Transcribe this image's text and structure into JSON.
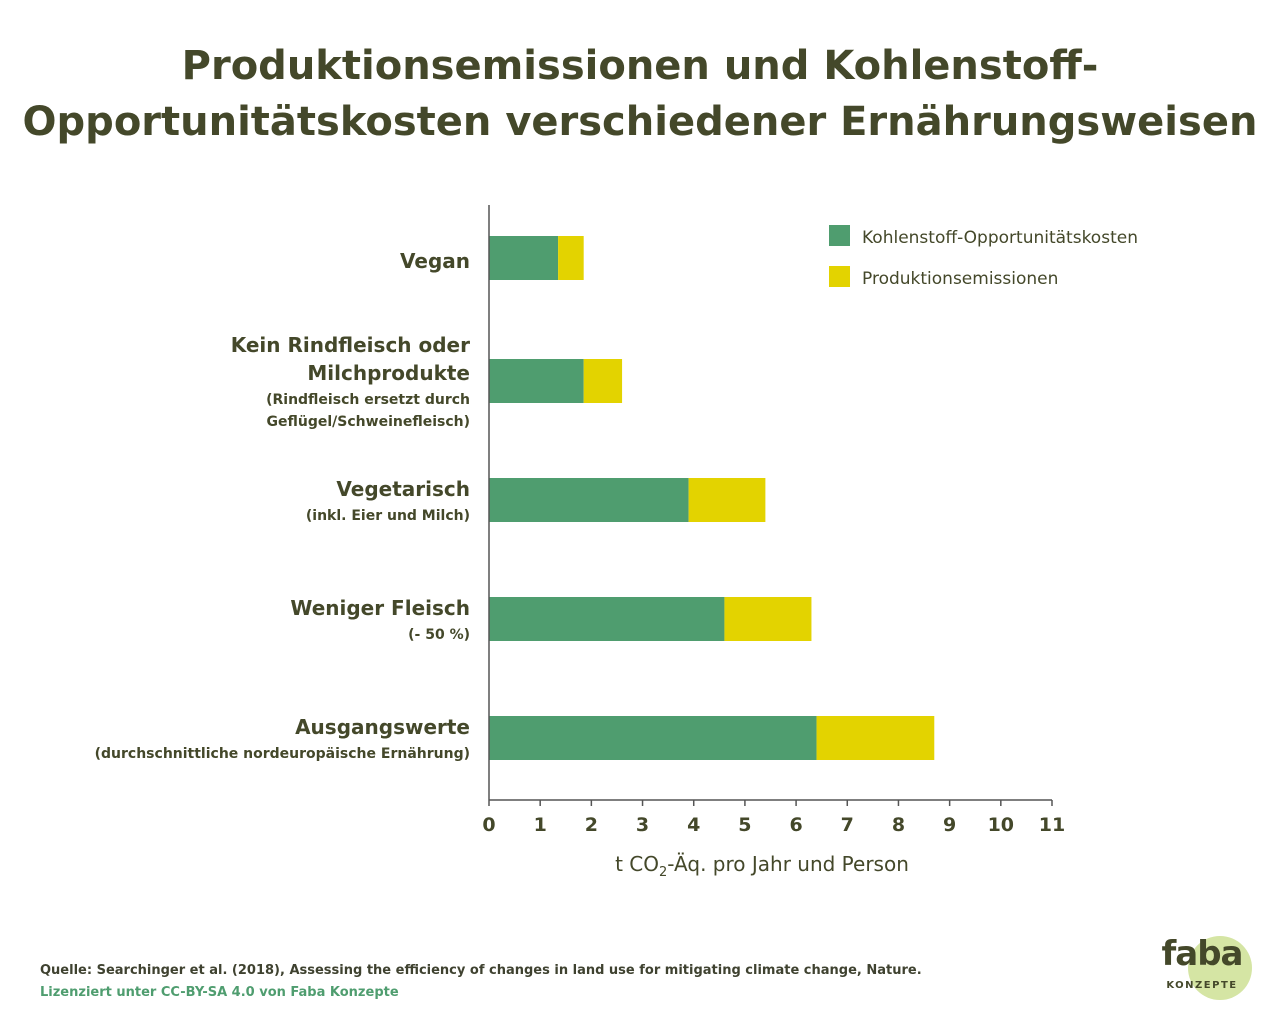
{
  "title": {
    "line1": "Produktionsemissionen und Kohlenstoff-",
    "line2": "Opportunitätskosten verschiedener Ernährungsweisen"
  },
  "chart_data": {
    "type": "bar",
    "orientation": "horizontal",
    "stacked": true,
    "categories": [
      {
        "label": [
          "Vegan"
        ],
        "sublabel": []
      },
      {
        "label": [
          "Kein Rindfleisch oder",
          "Milchprodukte "
        ],
        "sublabel": [
          "(Rindfleisch ersetzt durch",
          "Geflügel/Schweinefleisch)"
        ]
      },
      {
        "label": [
          "Vegetarisch"
        ],
        "sublabel": [
          "(inkl. Eier und Milch)"
        ]
      },
      {
        "label": [
          "Weniger Fleisch"
        ],
        "sublabel": [
          "(- 50 %)"
        ]
      },
      {
        "label": [
          "Ausgangswerte"
        ],
        "sublabel": [
          "(durchschnittliche nordeuropäische Ernährung)"
        ]
      }
    ],
    "series": [
      {
        "name": "Kohlenstoff-Opportunitätskosten",
        "color": "#4f9d6f",
        "values": [
          1.35,
          1.85,
          3.9,
          4.6,
          6.4
        ]
      },
      {
        "name": "Produktionsemissionen",
        "color": "#e3d300",
        "values": [
          0.5,
          0.75,
          1.5,
          1.7,
          2.3
        ]
      }
    ],
    "xlim": [
      0,
      11
    ],
    "xticks": [
      "0",
      "1",
      "2",
      "3",
      "4",
      "5",
      "6",
      "7",
      "8",
      "9",
      "10",
      "11"
    ],
    "xlabel": {
      "pre": "t CO",
      "sub": "2",
      "post": "-Äq. pro Jahr und Person"
    },
    "legend_position": "top-right",
    "grid": false
  },
  "footer": {
    "source": "Quelle: Searchinger et al. (2018), Assessing the efficiency of changes in land use for mitigating climate change, Nature.",
    "license": "Lizenziert unter CC-BY-SA 4.0 von Faba Konzepte"
  },
  "logo": {
    "word": "faba",
    "sub": "KONZEPTE"
  }
}
